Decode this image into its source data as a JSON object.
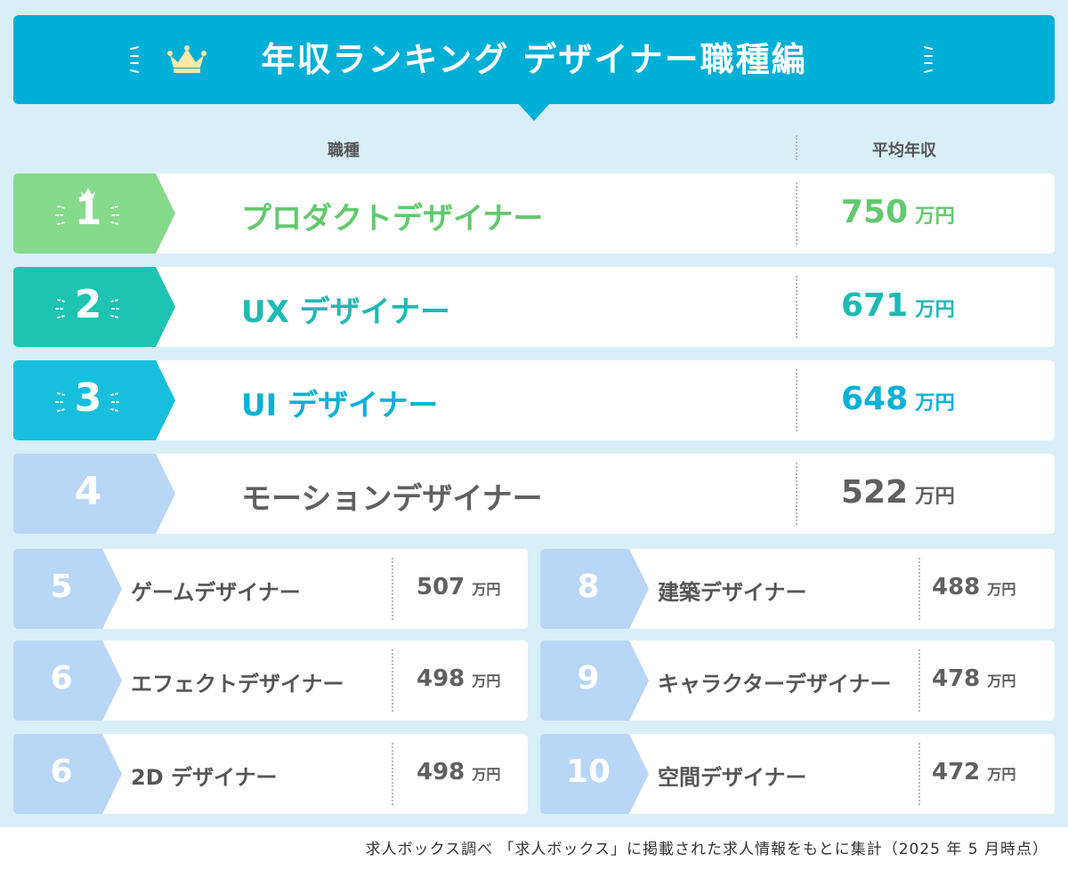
{
  "title": "年収ランキング デザイナー職種編",
  "header": {
    "job_col": "職種",
    "salary_col": "平均年収"
  },
  "unit": "万円",
  "chart_data": {
    "type": "table",
    "columns": [
      "職種",
      "平均年収"
    ],
    "rows": [
      {
        "rank": "1",
        "job": "プロダクトデザイナー",
        "value": 750,
        "color": "#62c96e"
      },
      {
        "rank": "2",
        "job": "UX デザイナー",
        "value": 671,
        "color": "#1fb9b3"
      },
      {
        "rank": "3",
        "job": "UI デザイナー",
        "value": 648,
        "color": "#09b1d6"
      },
      {
        "rank": "4",
        "job": "モーションデザイナー",
        "value": 522,
        "color": "#606060"
      },
      {
        "rank": "5",
        "job": "ゲームデザイナー",
        "value": 507,
        "color": "#606060"
      },
      {
        "rank": "6",
        "job": "エフェクトデザイナー",
        "value": 498,
        "color": "#606060"
      },
      {
        "rank": "6",
        "job": "2D デザイナー",
        "value": 498,
        "color": "#606060"
      },
      {
        "rank": "8",
        "job": "建築デザイナー",
        "value": 488,
        "color": "#606060"
      },
      {
        "rank": "9",
        "job": "キャラクターデザイナー",
        "value": 478,
        "color": "#606060"
      },
      {
        "rank": "10",
        "job": "空間デザイナー",
        "value": 472,
        "color": "#606060"
      }
    ],
    "badge_colors": [
      "#86da8c",
      "#1ec3b4",
      "#18bfdc",
      "#b8d6f6",
      "#b8d6f6",
      "#b8d6f6",
      "#b8d6f6",
      "#b8d6f6",
      "#b8d6f6",
      "#b8d6f6"
    ]
  },
  "footer": "求人ボックス調べ 「求人ボックス」に掲載された求人情報をもとに集計（2025 年 5 月時点）"
}
